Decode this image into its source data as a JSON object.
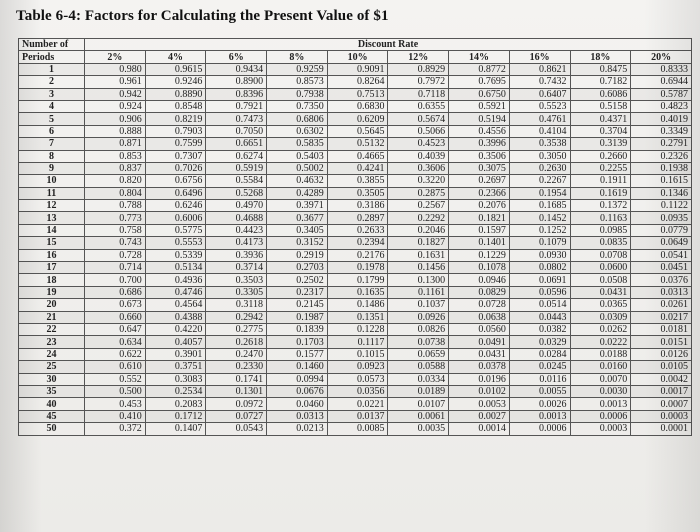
{
  "title": "Table 6-4: Factors for Calculating the Present Value of $1",
  "header": {
    "number_of": "Number of",
    "periods": "Periods",
    "discount_rate": "Discount Rate",
    "rates": [
      "2%",
      "4%",
      "6%",
      "8%",
      "10%",
      "12%",
      "14%",
      "16%",
      "18%",
      "20%"
    ]
  },
  "rows": [
    [
      "1",
      "0.980",
      "0.9615",
      "0.9434",
      "0.9259",
      "0.9091",
      "0.8929",
      "0.8772",
      "0.8621",
      "0.8475",
      "0.8333"
    ],
    [
      "2",
      "0.961",
      "0.9246",
      "0.8900",
      "0.8573",
      "0.8264",
      "0.7972",
      "0.7695",
      "0.7432",
      "0.7182",
      "0.6944"
    ],
    [
      "3",
      "0.942",
      "0.8890",
      "0.8396",
      "0.7938",
      "0.7513",
      "0.7118",
      "0.6750",
      "0.6407",
      "0.6086",
      "0.5787"
    ],
    [
      "4",
      "0.924",
      "0.8548",
      "0.7921",
      "0.7350",
      "0.6830",
      "0.6355",
      "0.5921",
      "0.5523",
      "0.5158",
      "0.4823"
    ],
    [
      "5",
      "0.906",
      "0.8219",
      "0.7473",
      "0.6806",
      "0.6209",
      "0.5674",
      "0.5194",
      "0.4761",
      "0.4371",
      "0.4019"
    ],
    [
      "6",
      "0.888",
      "0.7903",
      "0.7050",
      "0.6302",
      "0.5645",
      "0.5066",
      "0.4556",
      "0.4104",
      "0.3704",
      "0.3349"
    ],
    [
      "7",
      "0.871",
      "0.7599",
      "0.6651",
      "0.5835",
      "0.5132",
      "0.4523",
      "0.3996",
      "0.3538",
      "0.3139",
      "0.2791"
    ],
    [
      "8",
      "0.853",
      "0.7307",
      "0.6274",
      "0.5403",
      "0.4665",
      "0.4039",
      "0.3506",
      "0.3050",
      "0.2660",
      "0.2326"
    ],
    [
      "9",
      "0.837",
      "0.7026",
      "0.5919",
      "0.5002",
      "0.4241",
      "0.3606",
      "0.3075",
      "0.2630",
      "0.2255",
      "0.1938"
    ],
    [
      "10",
      "0.820",
      "0.6756",
      "0.5584",
      "0.4632",
      "0.3855",
      "0.3220",
      "0.2697",
      "0.2267",
      "0.1911",
      "0.1615"
    ],
    [
      "11",
      "0.804",
      "0.6496",
      "0.5268",
      "0.4289",
      "0.3505",
      "0.2875",
      "0.2366",
      "0.1954",
      "0.1619",
      "0.1346"
    ],
    [
      "12",
      "0.788",
      "0.6246",
      "0.4970",
      "0.3971",
      "0.3186",
      "0.2567",
      "0.2076",
      "0.1685",
      "0.1372",
      "0.1122"
    ],
    [
      "13",
      "0.773",
      "0.6006",
      "0.4688",
      "0.3677",
      "0.2897",
      "0.2292",
      "0.1821",
      "0.1452",
      "0.1163",
      "0.0935"
    ],
    [
      "14",
      "0.758",
      "0.5775",
      "0.4423",
      "0.3405",
      "0.2633",
      "0.2046",
      "0.1597",
      "0.1252",
      "0.0985",
      "0.0779"
    ],
    [
      "15",
      "0.743",
      "0.5553",
      "0.4173",
      "0.3152",
      "0.2394",
      "0.1827",
      "0.1401",
      "0.1079",
      "0.0835",
      "0.0649"
    ],
    [
      "16",
      "0.728",
      "0.5339",
      "0.3936",
      "0.2919",
      "0.2176",
      "0.1631",
      "0.1229",
      "0.0930",
      "0.0708",
      "0.0541"
    ],
    [
      "17",
      "0.714",
      "0.5134",
      "0.3714",
      "0.2703",
      "0.1978",
      "0.1456",
      "0.1078",
      "0.0802",
      "0.0600",
      "0.0451"
    ],
    [
      "18",
      "0.700",
      "0.4936",
      "0.3503",
      "0.2502",
      "0.1799",
      "0.1300",
      "0.0946",
      "0.0691",
      "0.0508",
      "0.0376"
    ],
    [
      "19",
      "0.686",
      "0.4746",
      "0.3305",
      "0.2317",
      "0.1635",
      "0.1161",
      "0.0829",
      "0.0596",
      "0.0431",
      "0.0313"
    ],
    [
      "20",
      "0.673",
      "0.4564",
      "0.3118",
      "0.2145",
      "0.1486",
      "0.1037",
      "0.0728",
      "0.0514",
      "0.0365",
      "0.0261"
    ],
    [
      "21",
      "0.660",
      "0.4388",
      "0.2942",
      "0.1987",
      "0.1351",
      "0.0926",
      "0.0638",
      "0.0443",
      "0.0309",
      "0.0217"
    ],
    [
      "22",
      "0.647",
      "0.4220",
      "0.2775",
      "0.1839",
      "0.1228",
      "0.0826",
      "0.0560",
      "0.0382",
      "0.0262",
      "0.0181"
    ],
    [
      "23",
      "0.634",
      "0.4057",
      "0.2618",
      "0.1703",
      "0.1117",
      "0.0738",
      "0.0491",
      "0.0329",
      "0.0222",
      "0.0151"
    ],
    [
      "24",
      "0.622",
      "0.3901",
      "0.2470",
      "0.1577",
      "0.1015",
      "0.0659",
      "0.0431",
      "0.0284",
      "0.0188",
      "0.0126"
    ],
    [
      "25",
      "0.610",
      "0.3751",
      "0.2330",
      "0.1460",
      "0.0923",
      "0.0588",
      "0.0378",
      "0.0245",
      "0.0160",
      "0.0105"
    ],
    [
      "30",
      "0.552",
      "0.3083",
      "0.1741",
      "0.0994",
      "0.0573",
      "0.0334",
      "0.0196",
      "0.0116",
      "0.0070",
      "0.0042"
    ],
    [
      "35",
      "0.500",
      "0.2534",
      "0.1301",
      "0.0676",
      "0.0356",
      "0.0189",
      "0.0102",
      "0.0055",
      "0.0030",
      "0.0017"
    ],
    [
      "40",
      "0.453",
      "0.2083",
      "0.0972",
      "0.0460",
      "0.0221",
      "0.0107",
      "0.0053",
      "0.0026",
      "0.0013",
      "0.0007"
    ],
    [
      "45",
      "0.410",
      "0.1712",
      "0.0727",
      "0.0313",
      "0.0137",
      "0.0061",
      "0.0027",
      "0.0013",
      "0.0006",
      "0.0003"
    ],
    [
      "50",
      "0.372",
      "0.1407",
      "0.0543",
      "0.0213",
      "0.0085",
      "0.0035",
      "0.0014",
      "0.0006",
      "0.0003",
      "0.0001"
    ]
  ]
}
